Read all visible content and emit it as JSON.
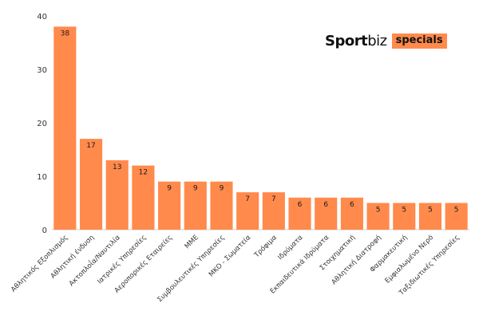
{
  "brand": {
    "part1": "Sport",
    "part2": "biz",
    "tag": "specials",
    "tag_color": "#ff8a4c"
  },
  "chart_data": {
    "type": "bar",
    "categories": [
      "Αθλητικός Εξοπλισμός",
      "Αθλητική ένδυση",
      "Ακτοπλοΐα/Ναυτιλία",
      "Ιατρικές Υπηρεσίες",
      "Αεροπορικές Εταιρείες",
      "ΜΜΕ",
      "Συμβουλευτικές Υπηρεσίες",
      "ΜΚΟ - Σωματεία",
      "Τρόφιμα",
      "Ιδρύματα",
      "Εκπαιδευτικά Ιδρύματα",
      "Στοιχηματική",
      "Αθλητική Διατροφή",
      "Φαρμακευτική",
      "Εμφιαλωμένο Νερό",
      "Ταξιδιωτικές Υπηρεσίες"
    ],
    "values": [
      38,
      17,
      13,
      12,
      9,
      9,
      9,
      7,
      7,
      6,
      6,
      6,
      5,
      5,
      5,
      5
    ],
    "yticks": [
      "0",
      "10",
      "20",
      "30",
      "40"
    ],
    "ylim": [
      0,
      40
    ],
    "bar_color": "#ff8a4c",
    "grid": false,
    "data_labels": true
  }
}
